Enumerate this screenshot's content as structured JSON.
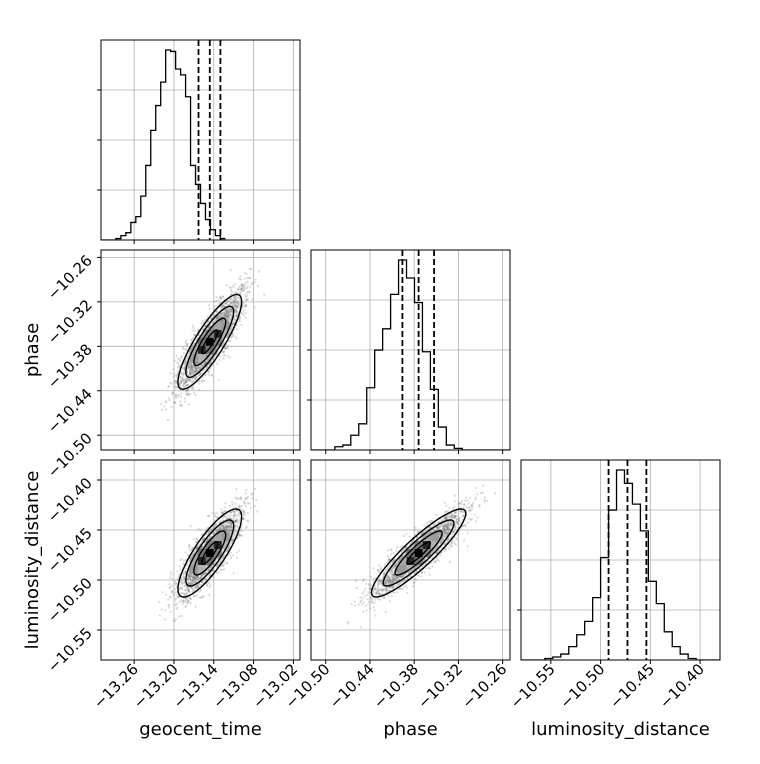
{
  "chart_data": {
    "type": "corner",
    "parameters": [
      "geocent_time",
      "phase",
      "luminosity_distance"
    ],
    "axis_labels": [
      "geocent_time",
      "phase",
      "luminosity_distance"
    ],
    "ranges": [
      [
        -13.31,
        -13.01
      ],
      [
        -10.52,
        -10.25
      ],
      [
        -10.58,
        -10.38
      ]
    ],
    "ticks": [
      {
        "values": [
          -13.26,
          -13.2,
          -13.14,
          -13.08,
          -13.02
        ],
        "labels": [
          "−13.26",
          "−13.20",
          "−13.14",
          "−13.08",
          "−13.02"
        ]
      },
      {
        "values": [
          -10.5,
          -10.44,
          -10.38,
          -10.32,
          -10.26
        ],
        "labels": [
          "−10.50",
          "−10.44",
          "−10.38",
          "−10.32",
          "−10.26"
        ]
      },
      {
        "values": [
          -10.55,
          -10.5,
          -10.45,
          -10.4
        ],
        "labels": [
          "−10.55",
          "−10.50",
          "−10.45",
          "−10.40"
        ]
      }
    ],
    "quantiles": [
      [
        -13.163,
        -13.146,
        -13.13
      ],
      [
        -10.396,
        -10.374,
        -10.353
      ],
      [
        -10.492,
        -10.473,
        -10.454
      ]
    ],
    "histograms": [
      {
        "edges_start": -13.31,
        "bin_width": 0.0075,
        "counts": [
          0,
          0,
          0,
          1,
          3,
          5,
          12,
          16,
          30,
          51,
          75,
          92,
          108,
          130,
          129,
          117,
          113,
          98,
          51,
          38,
          25,
          14,
          7,
          3,
          1
        ]
      },
      {
        "edges_start": -10.52,
        "bin_width": 0.0108,
        "counts": [
          0,
          0,
          0,
          2,
          3,
          9,
          16,
          38,
          61,
          74,
          95,
          116,
          105,
          90,
          60,
          37,
          14,
          3,
          1,
          0,
          0,
          0,
          0,
          0,
          0
        ]
      },
      {
        "edges_start": -10.58,
        "bin_width": 0.008,
        "counts": [
          0,
          0,
          0,
          1,
          2,
          4,
          9,
          17,
          26,
          42,
          69,
          101,
          128,
          119,
          105,
          87,
          53,
          38,
          19,
          9,
          4,
          1,
          0,
          0,
          0
        ]
      }
    ],
    "density": {
      "mean": [
        -13.146,
        -10.374,
        -10.473
      ],
      "sd": [
        0.024,
        0.032,
        0.022
      ],
      "corr": [
        [
          1.0,
          0.85,
          0.82
        ],
        [
          0.85,
          1.0,
          0.9
        ],
        [
          0.82,
          0.9,
          1.0
        ]
      ]
    },
    "grid": true
  }
}
